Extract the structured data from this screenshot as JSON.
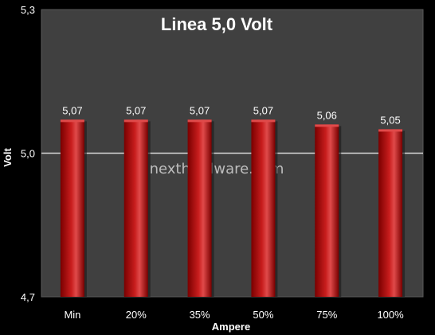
{
  "chart_data": {
    "type": "bar",
    "title": "Linea 5,0 Volt",
    "xlabel": "Ampere",
    "ylabel": "Volt",
    "categories": [
      "Min",
      "20%",
      "35%",
      "50%",
      "75%",
      "100%"
    ],
    "values": [
      5.07,
      5.07,
      5.07,
      5.07,
      5.06,
      5.05
    ],
    "value_labels": [
      "5,07",
      "5,07",
      "5,07",
      "5,07",
      "5,06",
      "5,05"
    ],
    "ylim": [
      4.7,
      5.3
    ],
    "yticks": [
      4.7,
      5.0,
      5.3
    ],
    "ytick_labels": [
      "4,7",
      "5,0",
      "5,3"
    ],
    "grid": true,
    "legend": "none",
    "watermark": "nexthardware.com",
    "colors": {
      "page_background": "#000000",
      "plot_background": "#404040",
      "plot_border": "#5a5a5a",
      "gridline": "#d8d8d8",
      "bar_dark": "#7a0000",
      "bar_mid": "#c81d1d",
      "bar_light": "#e04a4a",
      "text": "#ffffff"
    }
  }
}
